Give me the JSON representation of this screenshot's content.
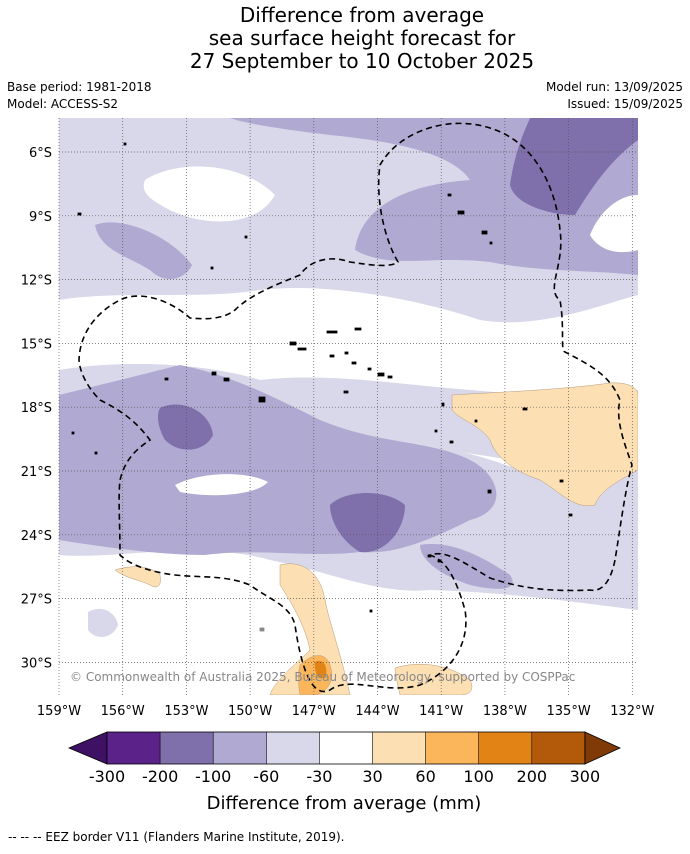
{
  "title": {
    "line1": "Difference from average",
    "line2": "sea surface height forecast for",
    "line3": "27 September to 10 October 2025"
  },
  "meta": {
    "base_period": "Base period: 1981-2018",
    "model": "Model: ACCESS-S2",
    "model_run": "Model run: 13/09/2025",
    "issued": "Issued: 15/09/2025"
  },
  "map": {
    "lat_ticks": [
      "6°S",
      "9°S",
      "12°S",
      "15°S",
      "18°S",
      "21°S",
      "24°S",
      "27°S",
      "30°S"
    ],
    "lon_ticks": [
      "159°W",
      "156°W",
      "153°W",
      "150°W",
      "147°W",
      "144°W",
      "141°W",
      "138°W",
      "135°W",
      "132°W"
    ],
    "copyright": "© Commonwealth of Australia 2025, Bureau of Meteorology, supported by COSPPac"
  },
  "colorbar": {
    "labels": [
      "-300",
      "-200",
      "-100",
      "-60",
      "-30",
      "30",
      "60",
      "100",
      "200",
      "300"
    ],
    "colors": [
      "#3f1164",
      "#5b2389",
      "#7f70ab",
      "#b0a9d1",
      "#d8d8ea",
      "#ffffff",
      "#fddfb4",
      "#fbb65c",
      "#e28316",
      "#b3590a",
      "#7f3a08"
    ],
    "title": "Difference from average (mm)"
  },
  "footnote": "--  --  -- EEZ border V11 (Flanders Marine Institute, 2019)."
}
